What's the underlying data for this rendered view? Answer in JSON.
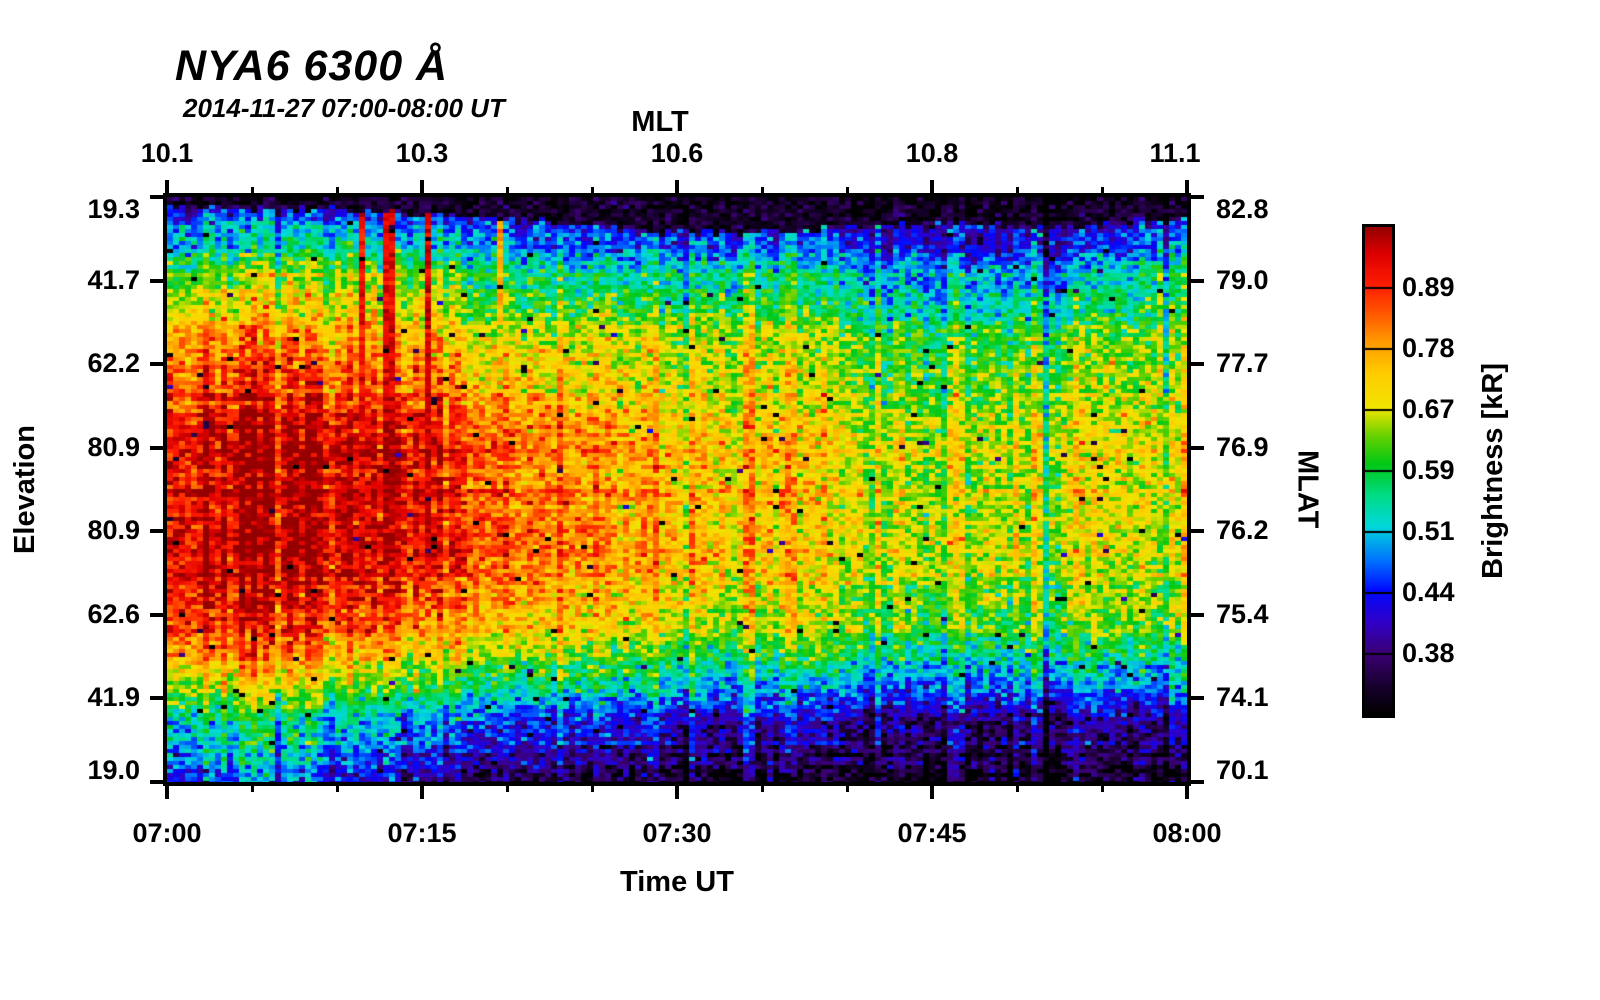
{
  "chart_data": {
    "type": "heatmap",
    "title": "NYA6 6300 Å",
    "subtitle": "2014-11-27 07:00-08:00 UT",
    "x_axis": {
      "label": "Time UT",
      "tick_labels": [
        "07:00",
        "07:15",
        "07:30",
        "07:45",
        "08:00"
      ],
      "major_tick_every_min": 15,
      "minor_tick_every_min": 5,
      "range_min": [
        0,
        60
      ]
    },
    "top_axis": {
      "label": "MLT",
      "tick_labels": [
        "10.1",
        "10.3",
        "10.6",
        "10.8",
        "11.1"
      ]
    },
    "y_axis": {
      "label": "Elevation",
      "tick_labels": [
        "19.3",
        "41.7",
        "62.2",
        "80.9",
        "80.9",
        "62.6",
        "41.9",
        "19.0"
      ]
    },
    "right_axis": {
      "label": "MLAT",
      "tick_labels": [
        "82.8",
        "79.0",
        "77.7",
        "76.9",
        "76.2",
        "75.4",
        "74.1",
        "70.1"
      ]
    },
    "colorbar": {
      "label": "Brightness [kR]",
      "tick_labels": [
        "0.89",
        "0.78",
        "0.67",
        "0.59",
        "0.51",
        "0.44",
        "0.38"
      ],
      "vmin_kR": 0.33,
      "vmax_kR": 1.02,
      "scale": "log",
      "segments": 8
    },
    "colormap_stops": [
      [
        0.0,
        "#000000"
      ],
      [
        0.055,
        "#16002a"
      ],
      [
        0.125,
        "#3a0072"
      ],
      [
        0.19,
        "#3000c8"
      ],
      [
        0.255,
        "#0008ff"
      ],
      [
        0.315,
        "#0070ff"
      ],
      [
        0.386,
        "#00d8dc"
      ],
      [
        0.45,
        "#00dc86"
      ],
      [
        0.515,
        "#00c814"
      ],
      [
        0.575,
        "#6ed200"
      ],
      [
        0.628,
        "#f0e400"
      ],
      [
        0.7,
        "#ffcc00"
      ],
      [
        0.763,
        "#ff9c00"
      ],
      [
        0.825,
        "#ff5500"
      ],
      [
        0.879,
        "#ff1e00"
      ],
      [
        0.945,
        "#dc0000"
      ],
      [
        1.0,
        "#940000"
      ]
    ],
    "grid_note": "brightness_grid_kR: 9 rows (top elev 19.3 -> zenith -> bottom elev 19.0) x 13 columns (07:00 to 08:00 every 5 min), approximate kR read from colors",
    "brightness_grid_kR": [
      [
        0.4,
        0.385,
        0.375,
        0.385,
        0.37,
        0.36,
        0.355,
        0.35,
        0.345,
        0.34,
        0.345,
        0.35,
        0.35
      ],
      [
        0.6,
        0.61,
        0.62,
        0.6,
        0.55,
        0.52,
        0.52,
        0.54,
        0.5,
        0.47,
        0.48,
        0.5,
        0.54
      ],
      [
        0.78,
        0.8,
        0.76,
        0.73,
        0.68,
        0.66,
        0.65,
        0.66,
        0.61,
        0.58,
        0.6,
        0.62,
        0.61
      ],
      [
        0.92,
        0.96,
        0.94,
        0.88,
        0.8,
        0.74,
        0.71,
        0.72,
        0.66,
        0.63,
        0.65,
        0.68,
        0.66
      ],
      [
        0.96,
        1.0,
        0.98,
        0.93,
        0.85,
        0.78,
        0.74,
        0.75,
        0.69,
        0.65,
        0.67,
        0.7,
        0.68
      ],
      [
        0.95,
        0.99,
        0.96,
        0.91,
        0.84,
        0.78,
        0.74,
        0.73,
        0.68,
        0.65,
        0.66,
        0.68,
        0.67
      ],
      [
        0.84,
        0.88,
        0.82,
        0.74,
        0.7,
        0.67,
        0.64,
        0.63,
        0.6,
        0.57,
        0.58,
        0.6,
        0.59
      ],
      [
        0.56,
        0.59,
        0.54,
        0.5,
        0.48,
        0.46,
        0.44,
        0.43,
        0.41,
        0.4,
        0.41,
        0.42,
        0.41
      ],
      [
        0.43,
        0.47,
        0.42,
        0.37,
        0.355,
        0.345,
        0.34,
        0.335,
        0.33,
        0.33,
        0.335,
        0.34,
        0.33
      ]
    ],
    "red_streaks": [
      {
        "t": 0.191,
        "w": 0.009,
        "v": 0.92,
        "max_e": 0.62
      },
      {
        "t": 0.218,
        "w": 0.008,
        "v": 0.94,
        "max_e": 0.62
      },
      {
        "t": 0.256,
        "w": 0.01,
        "v": 0.95,
        "max_e": 0.62
      },
      {
        "t": 0.327,
        "w": 0.005,
        "v": 0.76,
        "max_e": 0.22
      }
    ],
    "dim_streaks": [
      {
        "t": 0.51,
        "w": 0.005,
        "f": 0.92
      },
      {
        "t": 0.578,
        "w": 0.004,
        "f": 0.93
      },
      {
        "t": 0.745,
        "w": 0.004,
        "f": 0.94
      },
      {
        "t": 0.863,
        "w": 0.006,
        "f": 0.88
      }
    ],
    "light_streaks": [
      {
        "t": 0.975,
        "w": 0.005,
        "f": 1.14,
        "max_e": 0.3
      }
    ],
    "top_cap_profile": [
      0.015,
      0.018,
      0.022,
      0.028,
      0.035,
      0.048,
      0.062,
      0.06,
      0.052,
      0.045,
      0.05,
      0.045,
      0.038
    ],
    "noise": {
      "cell_sigma": 0.07,
      "column_sigma": 0.045,
      "row_sigma": 0.025,
      "dark_speckle_prob": 0.012,
      "bright_speckle_prob": 0.02,
      "bright_speckle_factor": 1.12
    },
    "seed": 7
  }
}
